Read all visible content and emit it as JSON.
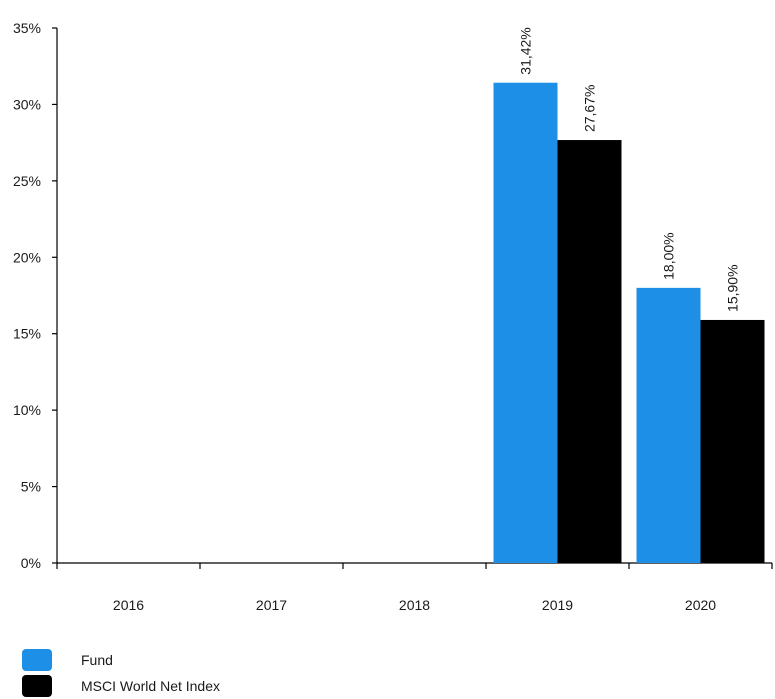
{
  "chart_data": {
    "type": "bar",
    "categories": [
      "2016",
      "2017",
      "2018",
      "2019",
      "2020"
    ],
    "series": [
      {
        "name": "Fund",
        "color": "#1e8fe6",
        "values": [
          null,
          null,
          null,
          31.42,
          18.0
        ],
        "labels": [
          "",
          "",
          "",
          "31,42%",
          "18,00%"
        ]
      },
      {
        "name": "MSCI World Net Index",
        "color": "#000000",
        "values": [
          null,
          null,
          null,
          27.67,
          15.9
        ],
        "labels": [
          "",
          "",
          "",
          "27,67%",
          "15,90%"
        ]
      }
    ],
    "y_ticks": [
      0,
      5,
      10,
      15,
      20,
      25,
      30,
      35
    ],
    "y_tick_labels": [
      "0%",
      "5%",
      "10%",
      "15%",
      "20%",
      "25%",
      "30%",
      "35%"
    ],
    "ylim": [
      0,
      35
    ],
    "grid": false,
    "legend_position": "bottom-left"
  }
}
